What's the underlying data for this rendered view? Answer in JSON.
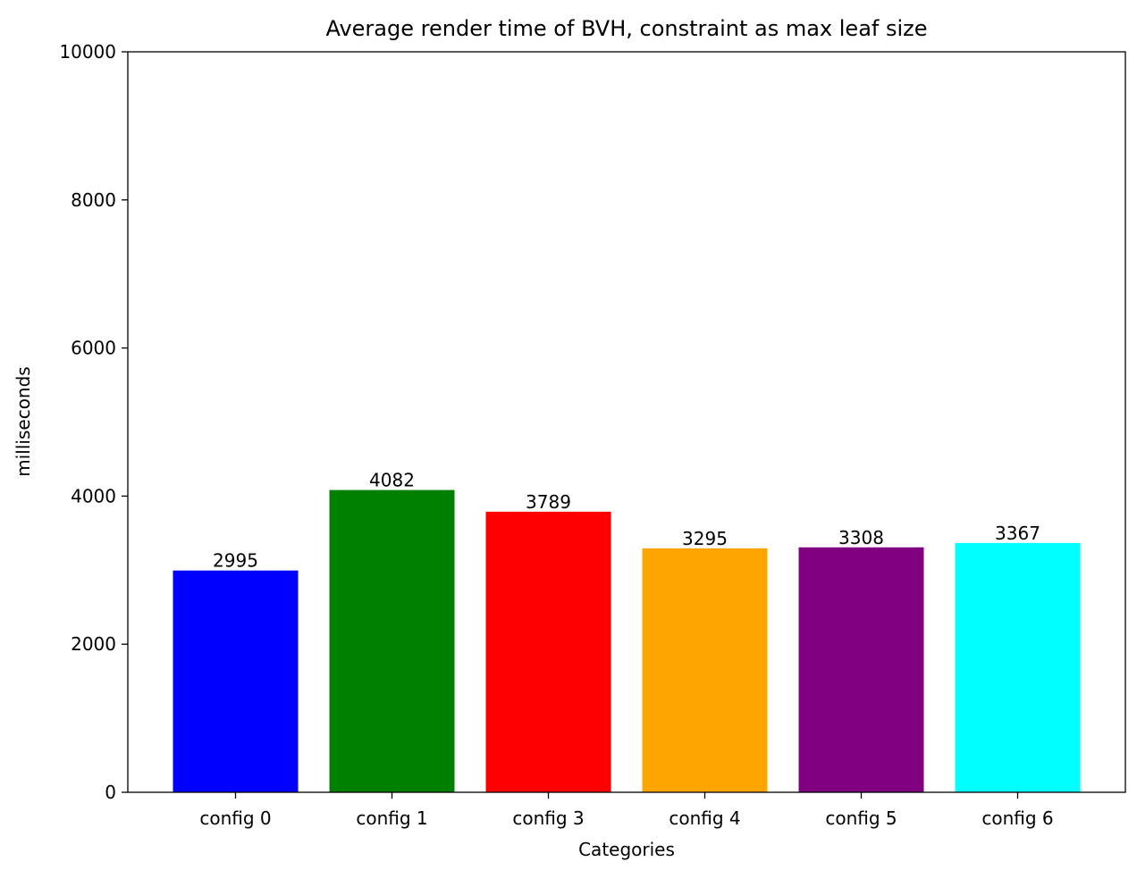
{
  "chart_data": {
    "type": "bar",
    "title": "Average render time of BVH, constraint as max leaf size",
    "xlabel": "Categories",
    "ylabel": "milliseconds",
    "ylim": [
      0,
      10000
    ],
    "yticks": [
      0,
      2000,
      4000,
      6000,
      8000,
      10000
    ],
    "categories": [
      "config 0",
      "config 1",
      "config 3",
      "config 4",
      "config 5",
      "config 6"
    ],
    "values": [
      2995,
      4082,
      3789,
      3295,
      3308,
      3367
    ],
    "colors": [
      "#0000ff",
      "#008000",
      "#ff0000",
      "#ffa500",
      "#800080",
      "#00ffff"
    ],
    "grid": false,
    "legend": "none"
  }
}
